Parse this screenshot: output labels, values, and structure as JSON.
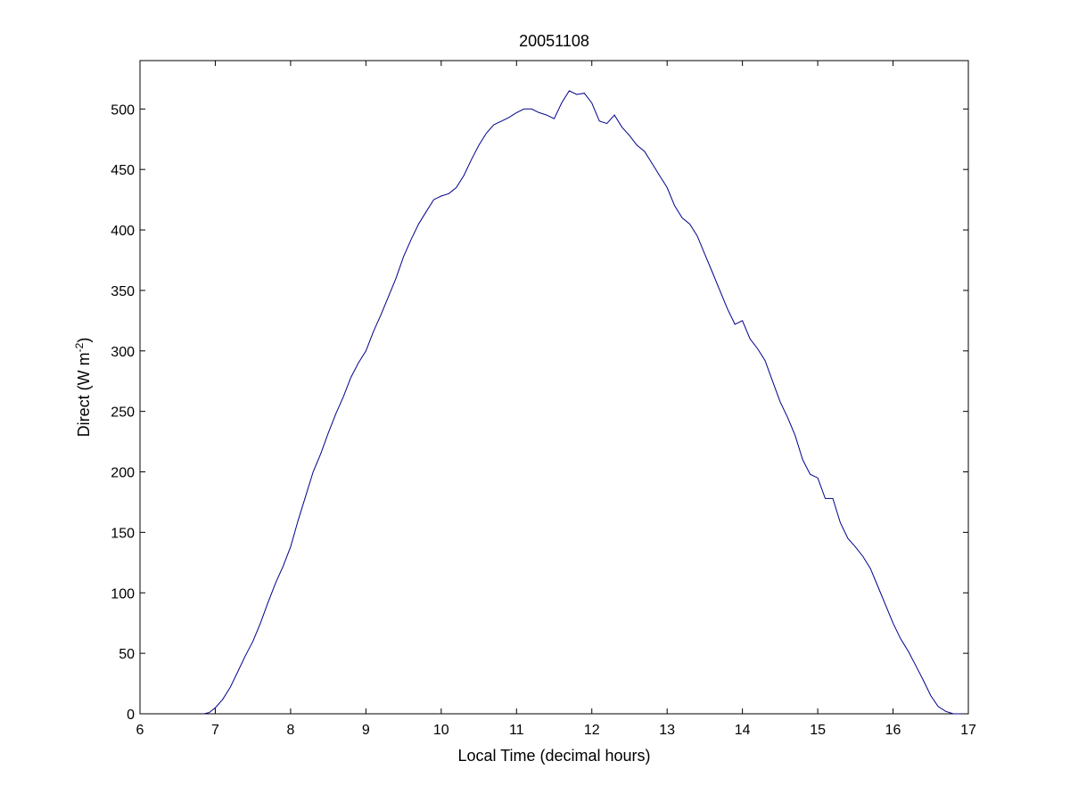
{
  "chart_data": {
    "type": "line",
    "title": "20051108",
    "xlabel": "Local Time (decimal hours)",
    "ylabel_main": "Direct (W m",
    "ylabel_sup": "-2",
    "ylabel_close": ")",
    "xlim": [
      6,
      17
    ],
    "ylim": [
      0,
      540
    ],
    "xticks": [
      6,
      7,
      8,
      9,
      10,
      11,
      12,
      13,
      14,
      15,
      16,
      17
    ],
    "yticks": [
      0,
      50,
      100,
      150,
      200,
      250,
      300,
      350,
      400,
      450,
      500
    ],
    "grid": false,
    "line_color": "#00008b",
    "series": [
      {
        "x": [
          6.85,
          6.92,
          7.0,
          7.1,
          7.2,
          7.3,
          7.4,
          7.5,
          7.6,
          7.7,
          7.8,
          7.9,
          8.0,
          8.1,
          8.2,
          8.3,
          8.4,
          8.5,
          8.6,
          8.7,
          8.8,
          8.9,
          9.0,
          9.1,
          9.2,
          9.3,
          9.4,
          9.5,
          9.6,
          9.7,
          9.8,
          9.9,
          10.0,
          10.1,
          10.2,
          10.3,
          10.4,
          10.5,
          10.6,
          10.7,
          10.8,
          10.9,
          11.0,
          11.1,
          11.2,
          11.3,
          11.4,
          11.5,
          11.6,
          11.7,
          11.8,
          11.9,
          12.0,
          12.1,
          12.2,
          12.3,
          12.4,
          12.5,
          12.6,
          12.7,
          12.8,
          12.9,
          13.0,
          13.1,
          13.2,
          13.3,
          13.4,
          13.5,
          13.6,
          13.7,
          13.8,
          13.9,
          14.0,
          14.1,
          14.2,
          14.3,
          14.4,
          14.5,
          14.6,
          14.7,
          14.8,
          14.9,
          15.0,
          15.1,
          15.2,
          15.3,
          15.4,
          15.5,
          15.6,
          15.7,
          15.8,
          15.9,
          16.0,
          16.1,
          16.2,
          16.3,
          16.4,
          16.5,
          16.6,
          16.7,
          16.8,
          16.9
        ],
        "y": [
          0,
          1,
          5,
          12,
          22,
          35,
          48,
          60,
          75,
          92,
          108,
          122,
          138,
          160,
          180,
          200,
          215,
          232,
          248,
          262,
          278,
          290,
          300,
          316,
          330,
          345,
          360,
          378,
          392,
          405,
          415,
          425,
          428,
          430,
          435,
          445,
          458,
          470,
          480,
          487,
          490,
          493,
          497,
          500,
          500,
          497,
          495,
          492,
          505,
          515,
          512,
          513,
          505,
          490,
          488,
          495,
          485,
          478,
          470,
          465,
          455,
          445,
          435,
          420,
          410,
          405,
          395,
          380,
          365,
          350,
          335,
          322,
          325,
          310,
          302,
          292,
          275,
          258,
          245,
          230,
          210,
          198,
          195,
          178,
          178,
          158,
          145,
          138,
          130,
          120,
          105,
          90,
          75,
          62,
          52,
          40,
          28,
          15,
          6,
          2,
          0,
          0
        ]
      }
    ]
  }
}
